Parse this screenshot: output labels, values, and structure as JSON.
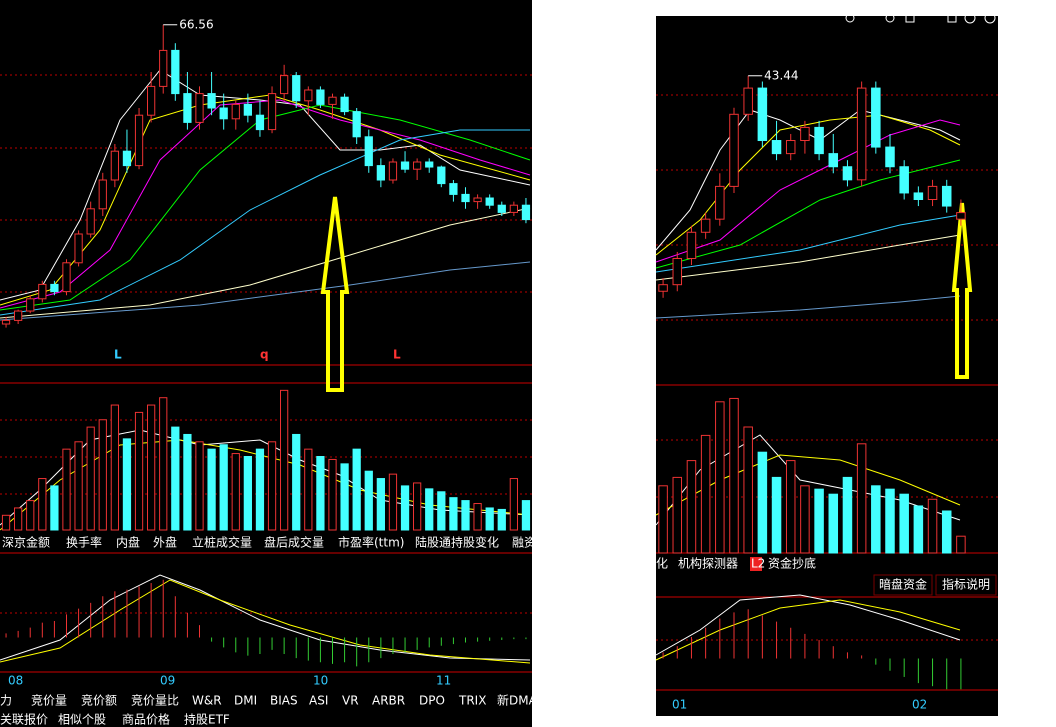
{
  "left": {
    "price_label": "66.56",
    "markers": [
      "L",
      "q",
      "L"
    ],
    "ylim": [
      20,
      70
    ],
    "vlim": [
      0,
      100
    ],
    "mlim": [
      -1,
      1
    ],
    "candles": [
      [
        25,
        26,
        24.5,
        25.5
      ],
      [
        25.5,
        27,
        25,
        26.8
      ],
      [
        26.8,
        29,
        26.5,
        28.5
      ],
      [
        28.5,
        31,
        28,
        30.5
      ],
      [
        30.5,
        31,
        29,
        29.5
      ],
      [
        29.5,
        34,
        29,
        33.5
      ],
      [
        33.5,
        38,
        33,
        37.5
      ],
      [
        37.5,
        42,
        37,
        41
      ],
      [
        41,
        46,
        40,
        45
      ],
      [
        45,
        50,
        44,
        49
      ],
      [
        49,
        52,
        46,
        47
      ],
      [
        47,
        55,
        46.5,
        54
      ],
      [
        54,
        60,
        53,
        58
      ],
      [
        58,
        66.56,
        57,
        63
      ],
      [
        63,
        64,
        56,
        57
      ],
      [
        57,
        60,
        52,
        53
      ],
      [
        53,
        58,
        52,
        57
      ],
      [
        57,
        60,
        54,
        55
      ],
      [
        55,
        57,
        52,
        53.5
      ],
      [
        53.5,
        56,
        52,
        55.5
      ],
      [
        55.5,
        57,
        53,
        54
      ],
      [
        54,
        56,
        51,
        52
      ],
      [
        52,
        58,
        51.5,
        57
      ],
      [
        57,
        61,
        56,
        59.5
      ],
      [
        59.5,
        60,
        55,
        56
      ],
      [
        56,
        58,
        54,
        57.5
      ],
      [
        57.5,
        58,
        55,
        55.5
      ],
      [
        55.5,
        57,
        53.5,
        56.5
      ],
      [
        56.5,
        57,
        54,
        54.5
      ],
      [
        54.5,
        55,
        50,
        51
      ],
      [
        51,
        52,
        46,
        47
      ],
      [
        47,
        48,
        44,
        45
      ],
      [
        45,
        48,
        44.5,
        47.5
      ],
      [
        47.5,
        49,
        46,
        46.5
      ],
      [
        46.5,
        48,
        45,
        47.5
      ],
      [
        47.5,
        48,
        46,
        46.8
      ],
      [
        46.8,
        47,
        44,
        44.5
      ],
      [
        44.5,
        45,
        42,
        43
      ],
      [
        43,
        44,
        41,
        42
      ],
      [
        42,
        43,
        41,
        42.5
      ],
      [
        42.5,
        43,
        41,
        41.5
      ],
      [
        41.5,
        42,
        40,
        40.5
      ],
      [
        40.5,
        42,
        40,
        41.5
      ],
      [
        41.5,
        42.5,
        39,
        39.5
      ]
    ],
    "volumes": [
      10,
      15,
      20,
      35,
      30,
      55,
      60,
      70,
      75,
      85,
      62,
      80,
      85,
      90,
      70,
      65,
      60,
      55,
      58,
      52,
      50,
      55,
      60,
      95,
      65,
      55,
      50,
      48,
      45,
      55,
      40,
      35,
      38,
      30,
      32,
      28,
      26,
      22,
      20,
      18,
      15,
      14,
      35,
      20
    ],
    "macd": [
      0.05,
      0.08,
      0.12,
      0.18,
      0.2,
      0.28,
      0.35,
      0.42,
      0.5,
      0.56,
      0.58,
      0.62,
      0.66,
      0.7,
      0.5,
      0.3,
      0.15,
      -0.05,
      -0.12,
      -0.18,
      -0.22,
      -0.2,
      -0.15,
      -0.2,
      -0.25,
      -0.28,
      -0.3,
      -0.32,
      -0.3,
      -0.35,
      -0.3,
      -0.25,
      -0.2,
      -0.18,
      -0.15,
      -0.12,
      -0.1,
      -0.08,
      -0.06,
      -0.05,
      -0.04,
      -0.03,
      -0.02,
      -0.02
    ],
    "tabs1": [
      "深京金额",
      "换手率",
      "内盘",
      "外盘",
      "立桩成交量",
      "盘后成交量",
      "市盈率(ttm)",
      "陆股通持股变化",
      "融资"
    ],
    "months": [
      "08",
      "09",
      "10",
      "11"
    ],
    "tabs2": [
      "力",
      "竞价量",
      "竞价额",
      "竞价量比",
      "W&R",
      "DMI",
      "BIAS",
      "ASI",
      "VR",
      "ARBR",
      "DPO",
      "TRIX",
      "新DMA"
    ],
    "tabs3": [
      "关联报价",
      "相似个股",
      "商品价格",
      "持股ETF"
    ]
  },
  "right": {
    "price_label": "43.44",
    "ylim": [
      20,
      48
    ],
    "vlim": [
      0,
      100
    ],
    "mlim": [
      -1,
      1
    ],
    "candles": [
      [
        27,
        28,
        26.5,
        27.5
      ],
      [
        27.5,
        30,
        27,
        29.5
      ],
      [
        29.5,
        32,
        29,
        31.5
      ],
      [
        31.5,
        33,
        31,
        32.5
      ],
      [
        32.5,
        36,
        32,
        35
      ],
      [
        35,
        41,
        34.5,
        40.5
      ],
      [
        40.5,
        43.44,
        40,
        42.5
      ],
      [
        42.5,
        43,
        38,
        38.5
      ],
      [
        38.5,
        40,
        37,
        37.5
      ],
      [
        37.5,
        39,
        37,
        38.5
      ],
      [
        38.5,
        40,
        37.5,
        39.5
      ],
      [
        39.5,
        40,
        37,
        37.5
      ],
      [
        37.5,
        39,
        36,
        36.5
      ],
      [
        36.5,
        37,
        35,
        35.5
      ],
      [
        35.5,
        43,
        35,
        42.5
      ],
      [
        42.5,
        43,
        37.5,
        38
      ],
      [
        38,
        39,
        36,
        36.5
      ],
      [
        36.5,
        37,
        34,
        34.5
      ],
      [
        34.5,
        35,
        33.5,
        34
      ],
      [
        34,
        35.5,
        33.5,
        35
      ],
      [
        35,
        35.5,
        33,
        33.5
      ],
      [
        32.5,
        34,
        32,
        33
      ]
    ],
    "volumes": [
      40,
      45,
      55,
      70,
      90,
      92,
      75,
      60,
      45,
      55,
      40,
      38,
      35,
      45,
      65,
      40,
      38,
      35,
      28,
      32,
      25,
      10
    ],
    "macd": [
      0.1,
      0.2,
      0.35,
      0.5,
      0.65,
      0.75,
      0.8,
      0.7,
      0.6,
      0.5,
      0.4,
      0.3,
      0.2,
      0.1,
      0.05,
      -0.1,
      -0.2,
      -0.3,
      -0.4,
      -0.45,
      -0.5,
      -0.5
    ],
    "tabs1": [
      "化",
      "机构探测器",
      "L2",
      "资金抄底"
    ],
    "buttons": [
      "暗盘资金",
      "指标说明"
    ],
    "months": [
      "01",
      "02"
    ]
  }
}
